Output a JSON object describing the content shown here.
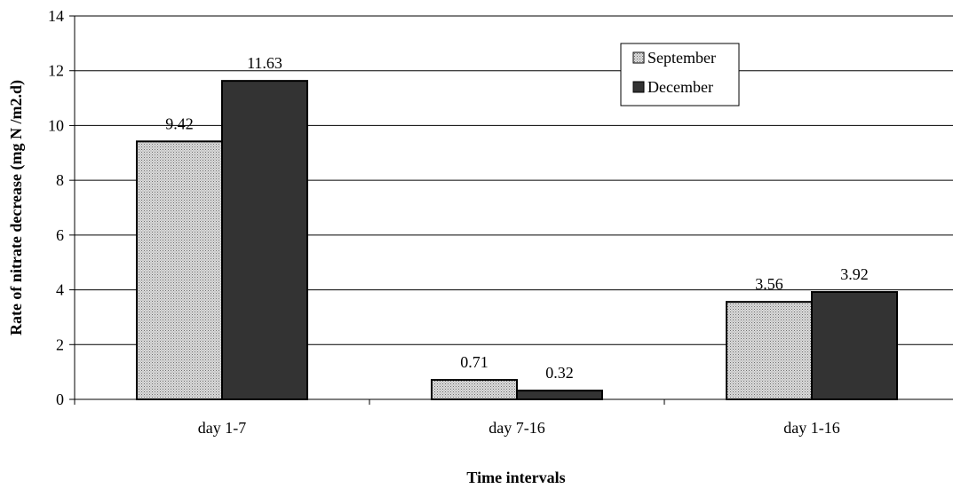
{
  "chart_data": {
    "type": "bar",
    "categories": [
      "day 1-7",
      "day 7-16",
      "day 1-16"
    ],
    "series": [
      {
        "name": "September",
        "values": [
          9.42,
          0.71,
          3.56
        ],
        "data_labels": [
          "9.42",
          "0.71",
          "3.56"
        ],
        "fill": "stippled-gray"
      },
      {
        "name": "December",
        "values": [
          11.63,
          0.32,
          3.92
        ],
        "data_labels": [
          "11.63",
          "0.32",
          "3.92"
        ],
        "fill": "#333333"
      }
    ],
    "xlabel": "Time intervals",
    "ylabel": "Rate of nitrate decrease (mg N /m2.d)",
    "ylim": [
      0,
      14
    ],
    "yticks": [
      "0",
      "2",
      "4",
      "6",
      "8",
      "10",
      "12",
      "14"
    ],
    "grid": "horizontal",
    "legend_position": "top-center-right"
  },
  "colors": {
    "september_fill": "#d9d9d9",
    "september_dots": "#6e6e6e",
    "december_fill": "#333333",
    "gridline": "#000000"
  }
}
